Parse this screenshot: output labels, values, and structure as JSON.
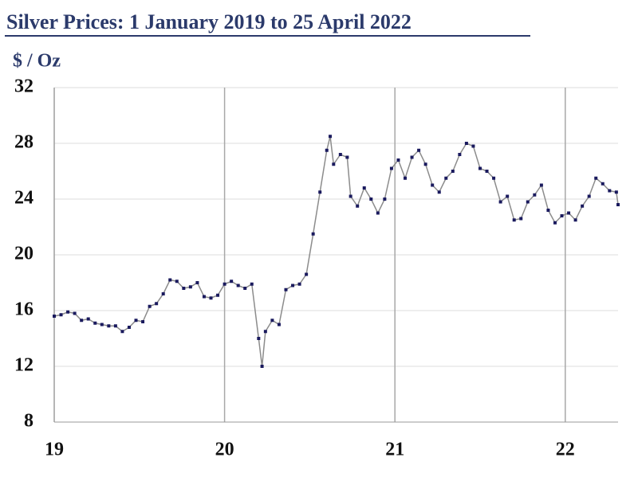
{
  "chart_data": {
    "type": "line",
    "title": "Silver Prices: 1 January 2019 to 25 April 2022",
    "y_label": "$ / Oz",
    "x": [
      19.0,
      19.04,
      19.08,
      19.12,
      19.16,
      19.2,
      19.24,
      19.28,
      19.32,
      19.36,
      19.4,
      19.44,
      19.48,
      19.52,
      19.56,
      19.6,
      19.64,
      19.68,
      19.72,
      19.76,
      19.8,
      19.84,
      19.88,
      19.92,
      19.96,
      20.0,
      20.04,
      20.08,
      20.12,
      20.16,
      20.2,
      20.22,
      20.24,
      20.28,
      20.32,
      20.36,
      20.4,
      20.44,
      20.48,
      20.52,
      20.56,
      20.6,
      20.62,
      20.64,
      20.68,
      20.72,
      20.74,
      20.78,
      20.82,
      20.86,
      20.9,
      20.94,
      20.98,
      21.02,
      21.06,
      21.1,
      21.14,
      21.18,
      21.22,
      21.26,
      21.3,
      21.34,
      21.38,
      21.42,
      21.46,
      21.5,
      21.54,
      21.58,
      21.62,
      21.66,
      21.7,
      21.74,
      21.78,
      21.82,
      21.86,
      21.9,
      21.94,
      21.98,
      22.02,
      22.06,
      22.1,
      22.14,
      22.18,
      22.22,
      22.26,
      22.3,
      22.31
    ],
    "series": [
      {
        "name": "Silver",
        "color": "#1a1a5e",
        "line_color": "#8c8c8c",
        "values": [
          15.6,
          15.7,
          15.9,
          15.8,
          15.3,
          15.4,
          15.1,
          15.0,
          14.9,
          14.9,
          14.5,
          14.8,
          15.3,
          15.2,
          16.3,
          16.5,
          17.2,
          18.2,
          18.1,
          17.6,
          17.7,
          18.0,
          17.0,
          16.9,
          17.1,
          17.9,
          18.1,
          17.8,
          17.6,
          17.9,
          14.0,
          12.0,
          14.5,
          15.3,
          15.0,
          17.5,
          17.8,
          17.9,
          18.6,
          21.5,
          24.5,
          27.5,
          28.5,
          26.5,
          27.2,
          27.0,
          24.2,
          23.5,
          24.8,
          24.0,
          23.0,
          24.0,
          26.2,
          26.8,
          25.5,
          27.0,
          27.5,
          26.5,
          25.0,
          24.5,
          25.5,
          26.0,
          27.2,
          28.0,
          27.8,
          26.2,
          26.0,
          25.5,
          23.8,
          24.2,
          22.5,
          22.6,
          23.8,
          24.3,
          25.0,
          23.2,
          22.3,
          22.8,
          23.0,
          22.5,
          23.5,
          24.2,
          25.5,
          25.1,
          24.6,
          24.5,
          23.6
        ]
      }
    ],
    "xlim": [
      19,
      22.31
    ],
    "xticks": [
      19,
      20,
      21,
      22
    ],
    "ylim": [
      8,
      32
    ],
    "yticks": [
      8,
      12,
      16,
      20,
      24,
      28,
      32
    ],
    "grid": true
  }
}
